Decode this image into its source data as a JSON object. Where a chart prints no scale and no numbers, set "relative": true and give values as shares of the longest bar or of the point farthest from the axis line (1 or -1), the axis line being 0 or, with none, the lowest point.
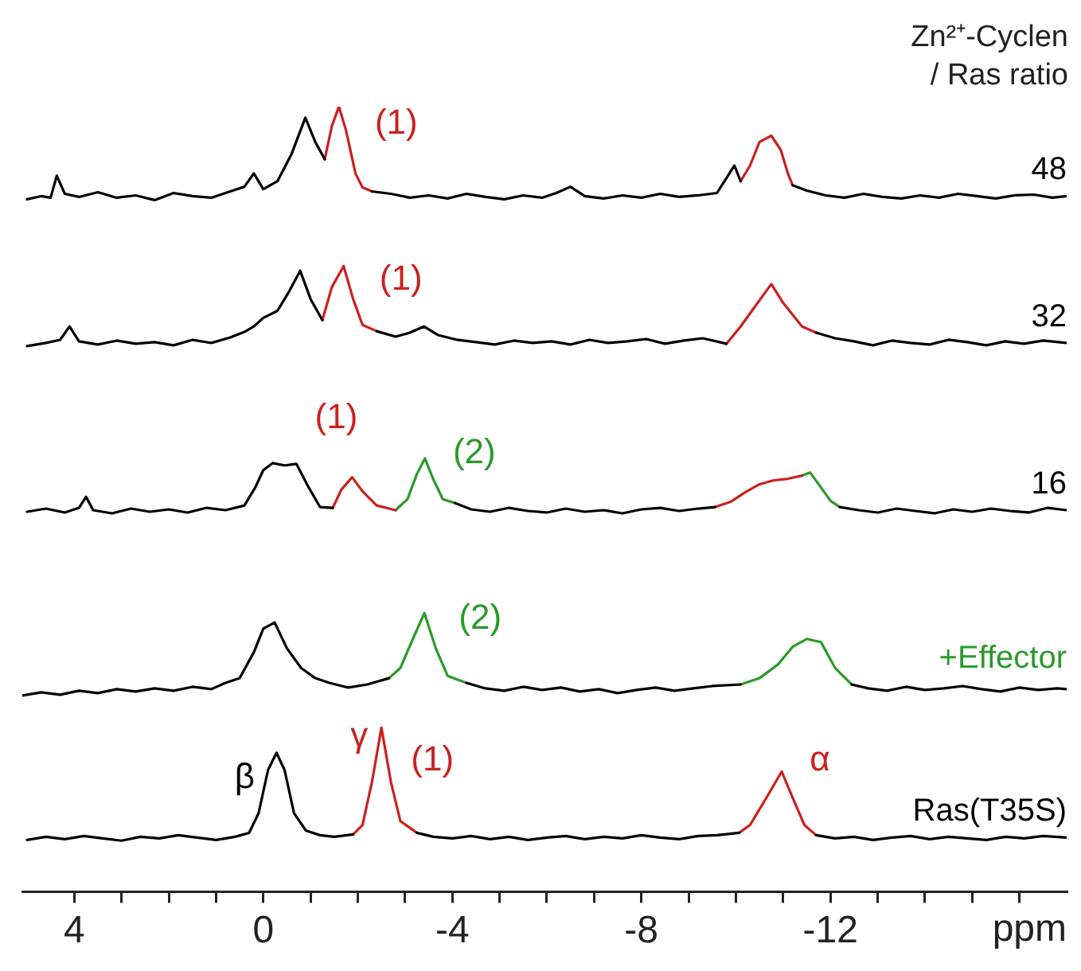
{
  "chart_data": {
    "type": "line",
    "relative": true,
    "xlabel": "ppm",
    "legend_title": "Zn²⁺-Cyclen / Ras ratio",
    "legend": false,
    "marker": "none",
    "line_style": "solid",
    "xlim": [
      5.1,
      -17
    ],
    "xticks": [
      4,
      {
        "value": 3,
        "label": null
      },
      {
        "value": 2,
        "label": null
      },
      {
        "value": 1,
        "label": null
      },
      0,
      {
        "value": -1,
        "label": null
      },
      {
        "value": -2,
        "label": null
      },
      {
        "value": -3,
        "label": null
      },
      -4,
      {
        "value": -5,
        "label": null
      },
      {
        "value": -6,
        "label": null
      },
      {
        "value": -7,
        "label": null
      },
      -8,
      {
        "value": -9,
        "label": null
      },
      {
        "value": -10,
        "label": null
      },
      {
        "value": -11,
        "label": null
      },
      -12,
      {
        "value": -13,
        "label": null
      },
      {
        "value": -14,
        "label": null
      },
      {
        "value": -15,
        "label": null
      },
      {
        "value": -16,
        "label": null
      }
    ],
    "series": [
      {
        "name": "48",
        "color": "#000000",
        "x": [
          5.0,
          4.7,
          4.5,
          4.37,
          4.2,
          3.9,
          3.5,
          3.1,
          2.7,
          2.3,
          1.9,
          1.5,
          1.1,
          0.7,
          0.4,
          0.2,
          0.0,
          -0.3,
          -0.6,
          -0.89,
          -1.1,
          -1.3,
          -1.8,
          -2.3,
          -2.7,
          -3.1,
          -3.5,
          -3.9,
          -4.3,
          -4.7,
          -5.1,
          -5.5,
          -5.9,
          -6.2,
          -6.5,
          -6.8,
          -7.2,
          -7.6,
          -8.0,
          -8.4,
          -8.8,
          -9.2,
          -9.6,
          -9.97,
          -10.1,
          -10.6,
          -11.2,
          -11.5,
          -11.9,
          -12.3,
          -12.7,
          -13.1,
          -13.5,
          -13.9,
          -14.3,
          -14.7,
          -15.1,
          -15.5,
          -15.9,
          -16.3,
          -16.7,
          -17.0
        ],
        "values": [
          0.882,
          0.886,
          0.884,
          0.912,
          0.889,
          0.885,
          0.891,
          0.884,
          0.887,
          0.881,
          0.89,
          0.886,
          0.884,
          0.892,
          0.898,
          0.915,
          0.895,
          0.905,
          0.94,
          0.986,
          0.955,
          0.933,
          null,
          0.892,
          0.889,
          0.884,
          0.887,
          0.883,
          0.889,
          0.885,
          0.882,
          0.887,
          0.884,
          0.89,
          0.898,
          0.886,
          0.883,
          0.887,
          0.884,
          0.889,
          0.885,
          0.887,
          0.89,
          0.925,
          0.905,
          null,
          0.9,
          0.893,
          0.887,
          0.884,
          0.889,
          0.885,
          0.883,
          0.887,
          0.884,
          0.889,
          0.886,
          0.883,
          0.887,
          0.888,
          0.884,
          0.886
        ]
      },
      {
        "color": "#cc1f1f",
        "x": [
          -1.3,
          -1.45,
          -1.6,
          -1.75,
          -1.95,
          -2.1,
          -2.3
        ],
        "values": [
          0.933,
          0.975,
          1.0,
          0.97,
          0.915,
          0.897,
          0.892
        ]
      },
      {
        "color": "#cc1f1f",
        "x": [
          -10.1,
          -10.3,
          -10.5,
          -10.75,
          -10.95,
          -11.1,
          -11.2
        ],
        "values": [
          0.905,
          0.925,
          0.955,
          0.963,
          0.945,
          0.915,
          0.9
        ]
      },
      {
        "name": "32",
        "color": "#000000",
        "x": [
          5.0,
          4.6,
          4.3,
          4.1,
          3.9,
          3.5,
          3.1,
          2.7,
          2.3,
          1.9,
          1.5,
          1.1,
          0.7,
          0.4,
          0.2,
          0.0,
          -0.3,
          -0.55,
          -0.78,
          -1.0,
          -1.25,
          -1.8,
          -2.4,
          -2.8,
          -3.1,
          -3.4,
          -3.7,
          -4.1,
          -4.5,
          -4.9,
          -5.3,
          -5.7,
          -6.1,
          -6.5,
          -6.9,
          -7.3,
          -7.7,
          -8.1,
          -8.5,
          -8.9,
          -9.3,
          -9.8,
          -10.7,
          -11.7,
          -12.1,
          -12.5,
          -12.9,
          -13.3,
          -13.7,
          -14.1,
          -14.5,
          -14.9,
          -15.3,
          -15.7,
          -16.1,
          -16.5,
          -17.0
        ],
        "values": [
          0.695,
          0.699,
          0.703,
          0.72,
          0.701,
          0.697,
          0.702,
          0.698,
          0.7,
          0.696,
          0.703,
          0.699,
          0.706,
          0.713,
          0.72,
          0.731,
          0.74,
          0.765,
          0.791,
          0.755,
          0.728,
          null,
          0.714,
          0.707,
          0.712,
          0.72,
          0.709,
          0.703,
          0.7,
          0.697,
          0.702,
          0.699,
          0.701,
          0.697,
          0.703,
          0.699,
          0.701,
          0.704,
          0.698,
          0.702,
          0.705,
          0.698,
          null,
          0.712,
          0.705,
          0.701,
          0.696,
          0.702,
          0.699,
          0.697,
          0.703,
          0.7,
          0.696,
          0.701,
          0.698,
          0.702,
          0.699
        ]
      },
      {
        "color": "#cc1f1f",
        "x": [
          -1.25,
          -1.45,
          -1.7,
          -1.9,
          -2.1,
          -2.4
        ],
        "values": [
          0.728,
          0.77,
          0.797,
          0.755,
          0.722,
          0.714
        ]
      },
      {
        "color": "#cc1f1f",
        "x": [
          -9.8,
          -10.1,
          -10.4,
          -10.75,
          -11.0,
          -11.4,
          -11.7
        ],
        "values": [
          0.698,
          0.72,
          0.745,
          0.774,
          0.75,
          0.72,
          0.712
        ]
      },
      {
        "name": "16",
        "color": "#000000",
        "x": [
          5.0,
          4.6,
          4.2,
          3.9,
          3.75,
          3.6,
          3.2,
          2.8,
          2.4,
          2.0,
          1.6,
          1.2,
          0.8,
          0.4,
          0.17,
          0.0,
          -0.2,
          -0.45,
          -0.7,
          -0.96,
          -1.2,
          -1.47,
          -2.8,
          -4.06,
          -4.4,
          -4.8,
          -5.2,
          -5.6,
          -6.0,
          -6.4,
          -6.8,
          -7.2,
          -7.6,
          -8.0,
          -8.4,
          -8.8,
          -9.2,
          -9.56,
          -11.0,
          -12.2,
          -12.6,
          -13.0,
          -13.4,
          -13.8,
          -14.2,
          -14.6,
          -15.0,
          -15.4,
          -15.8,
          -16.2,
          -16.6,
          -17.0
        ],
        "values": [
          0.484,
          0.488,
          0.483,
          0.489,
          0.503,
          0.486,
          0.482,
          0.488,
          0.484,
          0.487,
          0.483,
          0.489,
          0.486,
          0.492,
          0.515,
          0.537,
          0.546,
          0.543,
          0.545,
          0.515,
          0.49,
          0.489,
          null,
          0.495,
          0.487,
          0.484,
          0.489,
          0.485,
          0.483,
          0.488,
          0.484,
          0.486,
          0.482,
          0.487,
          0.489,
          0.485,
          0.488,
          0.49,
          null,
          0.49,
          0.486,
          0.483,
          0.488,
          0.485,
          0.482,
          0.487,
          0.484,
          0.488,
          0.485,
          0.483,
          0.489,
          0.486
        ]
      },
      {
        "color": "#cc1f1f",
        "x": [
          -1.47,
          -1.65,
          -1.88,
          -2.1,
          -2.4,
          -2.8
        ],
        "values": [
          0.489,
          0.512,
          0.528,
          0.51,
          0.492,
          0.486
        ]
      },
      {
        "color": "#2a9a2a",
        "x": [
          -2.8,
          -3.05,
          -3.25,
          -3.42,
          -3.6,
          -3.8,
          -4.06
        ],
        "values": [
          0.486,
          0.5,
          0.532,
          0.552,
          0.525,
          0.5,
          0.495
        ]
      },
      {
        "color": "#cc1f1f",
        "x": [
          -9.56,
          -9.9,
          -10.2,
          -10.5,
          -10.8,
          -11.1,
          -11.4
        ],
        "values": [
          0.49,
          0.497,
          0.509,
          0.519,
          0.524,
          0.526,
          0.53
        ]
      },
      {
        "color": "#2a9a2a",
        "x": [
          -11.4,
          -11.57,
          -11.8,
          -12.0,
          -12.2
        ],
        "values": [
          0.53,
          0.534,
          0.515,
          0.498,
          0.49
        ]
      },
      {
        "color": "#000000",
        "x": [
          5.1,
          4.7,
          4.3,
          3.9,
          3.5,
          3.1,
          2.7,
          2.3,
          1.9,
          1.5,
          1.1,
          0.8,
          0.5,
          0.2,
          0.0,
          -0.24,
          -0.5,
          -0.8,
          -1.1,
          -1.4,
          -1.8,
          -2.2,
          -2.66,
          -3.4,
          -4.3,
          -4.7,
          -5.1,
          -5.5,
          -5.9,
          -6.3,
          -6.7,
          -7.1,
          -7.5,
          -7.9,
          -8.3,
          -8.7,
          -9.1,
          -9.5,
          -10.1,
          -11.3,
          -12.45,
          -12.8,
          -13.2,
          -13.6,
          -14.0,
          -14.4,
          -14.8,
          -15.2,
          -15.6,
          -16.0,
          -16.4,
          -16.8,
          -17.0
        ],
        "values": [
          0.25,
          0.254,
          0.251,
          0.256,
          0.253,
          0.258,
          0.255,
          0.259,
          0.256,
          0.261,
          0.258,
          0.266,
          0.272,
          0.305,
          0.335,
          0.343,
          0.31,
          0.285,
          0.272,
          0.266,
          0.26,
          0.264,
          0.272,
          null,
          0.266,
          0.259,
          0.256,
          0.261,
          0.257,
          0.26,
          0.255,
          0.258,
          0.253,
          0.257,
          0.26,
          0.256,
          0.259,
          0.262,
          0.264,
          null,
          0.264,
          0.259,
          0.256,
          0.261,
          0.257,
          0.259,
          0.262,
          0.258,
          0.255,
          0.26,
          0.257,
          0.259,
          0.258
        ]
      },
      {
        "color": "#2a9a2a",
        "x": [
          -2.66,
          -2.9,
          -3.15,
          -3.41,
          -3.65,
          -3.9,
          -4.3
        ],
        "values": [
          0.272,
          0.285,
          0.32,
          0.355,
          0.31,
          0.275,
          0.266
        ]
      },
      {
        "name": "+Effector",
        "color": "#2a9a2a",
        "x": [
          -10.1,
          -10.5,
          -10.9,
          -11.2,
          -11.5,
          -11.8,
          -12.1,
          -12.45
        ],
        "values": [
          0.264,
          0.272,
          0.29,
          0.312,
          0.322,
          0.318,
          0.285,
          0.264
        ]
      },
      {
        "name": "Ras(T35S)",
        "color": "#000000",
        "x": [
          5.0,
          4.6,
          4.2,
          3.8,
          3.4,
          3.0,
          2.6,
          2.2,
          1.8,
          1.4,
          1.0,
          0.6,
          0.3,
          0.1,
          -0.1,
          -0.28,
          -0.45,
          -0.65,
          -0.9,
          -1.2,
          -1.5,
          -1.9,
          -2.5,
          -3.25,
          -3.6,
          -4.0,
          -4.4,
          -4.8,
          -5.2,
          -5.6,
          -6.0,
          -6.4,
          -6.8,
          -7.2,
          -7.6,
          -8.0,
          -8.4,
          -8.8,
          -9.2,
          -9.6,
          -10.07,
          -10.9,
          -11.7,
          -12.1,
          -12.5,
          -12.9,
          -13.3,
          -13.7,
          -14.1,
          -14.5,
          -14.9,
          -15.3,
          -15.7,
          -16.1,
          -16.5,
          -17.0
        ],
        "values": [
          0.066,
          0.07,
          0.067,
          0.071,
          0.068,
          0.065,
          0.07,
          0.068,
          0.072,
          0.069,
          0.066,
          0.07,
          0.075,
          0.1,
          0.155,
          0.177,
          0.155,
          0.1,
          0.078,
          0.072,
          0.07,
          0.073,
          null,
          0.075,
          0.07,
          0.068,
          0.071,
          0.067,
          0.07,
          0.066,
          0.069,
          0.071,
          0.067,
          0.07,
          0.068,
          0.072,
          0.069,
          0.067,
          0.071,
          0.072,
          0.075,
          null,
          0.072,
          0.068,
          0.07,
          0.066,
          0.069,
          0.071,
          0.067,
          0.07,
          0.068,
          0.066,
          0.07,
          0.068,
          0.071,
          0.069
        ]
      },
      {
        "color": "#cc1f1f",
        "x": [
          -1.9,
          -2.1,
          -2.3,
          -2.5,
          -2.7,
          -2.9,
          -3.25
        ],
        "values": [
          0.073,
          0.085,
          0.14,
          0.209,
          0.14,
          0.09,
          0.075
        ]
      },
      {
        "color": "#cc1f1f",
        "x": [
          -10.07,
          -10.3,
          -10.6,
          -10.97,
          -11.2,
          -11.45,
          -11.7
        ],
        "values": [
          0.075,
          0.085,
          0.115,
          0.153,
          0.12,
          0.085,
          0.072
        ]
      }
    ],
    "annotations": [
      {
        "text": "(1)",
        "x": -1.6,
        "y": 1.0
      },
      {
        "text": "(1)",
        "x": -1.7,
        "y": 0.797
      },
      {
        "text": "(1)",
        "x": -1.88,
        "y": 0.528
      },
      {
        "text": "(2)",
        "x": -3.42,
        "y": 0.552
      },
      {
        "text": "(2)",
        "x": -3.41,
        "y": 0.355
      },
      {
        "text": "β",
        "x": -0.28,
        "y": 0.177
      },
      {
        "text": "γ",
        "x": -2.5,
        "y": 0.209
      },
      {
        "text": "(1)",
        "x": -2.5,
        "y": 0.209
      },
      {
        "text": "α",
        "x": -10.97,
        "y": 0.153
      }
    ]
  }
}
